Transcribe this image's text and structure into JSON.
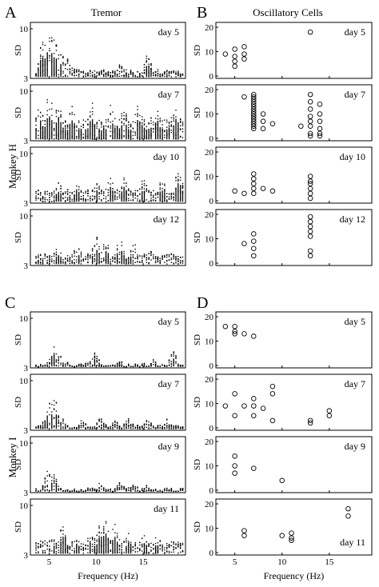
{
  "panel_letters": {
    "A": "A",
    "B": "B",
    "C": "C",
    "D": "D"
  },
  "column_titles": {
    "left": "Tremor",
    "right": "Oscillatory Cells"
  },
  "monkey_labels": {
    "h": "Monkey H",
    "i": "Monkey I"
  },
  "x_axis": {
    "label": "Frequency (Hz)",
    "ticks": [
      5,
      10,
      15
    ],
    "range": [
      3,
      19.5
    ]
  },
  "tremor_y": {
    "label": "SD",
    "ticks": [
      3,
      10
    ],
    "range": [
      3,
      10
    ]
  },
  "cells_y": {
    "label": "SD",
    "ticks": [
      0,
      10,
      20
    ],
    "range": [
      0,
      21
    ]
  },
  "chart_data": [
    {
      "id": "A-day5",
      "type": "scatter",
      "series_kind": "tremor",
      "panel_label": "day 5",
      "peaks": [
        {
          "f": 4.3,
          "h": 8.5
        },
        {
          "f": 4.8,
          "h": 9.5
        },
        {
          "f": 5.2,
          "h": 9.5
        },
        {
          "f": 5.6,
          "h": 8.8
        },
        {
          "f": 6.0,
          "h": 7.5
        },
        {
          "f": 6.5,
          "h": 6.2
        },
        {
          "f": 7.0,
          "h": 5.5
        },
        {
          "f": 8.0,
          "h": 4.8
        },
        {
          "f": 9.5,
          "h": 4.5
        },
        {
          "f": 12.5,
          "h": 5.0
        },
        {
          "f": 15.5,
          "h": 6.2
        },
        {
          "f": 16.5,
          "h": 4.5
        }
      ],
      "base": 4.3
    },
    {
      "id": "A-day7",
      "type": "scatter",
      "series_kind": "tremor",
      "panel_label": "day 7",
      "peaks": [
        {
          "f": 4.0,
          "h": 8.5
        },
        {
          "f": 5.0,
          "h": 9.5
        },
        {
          "f": 6.0,
          "h": 9.0
        },
        {
          "f": 7.5,
          "h": 8.2
        },
        {
          "f": 9.5,
          "h": 8.5
        },
        {
          "f": 11.5,
          "h": 8.5
        },
        {
          "f": 13.0,
          "h": 8.0
        },
        {
          "f": 14.5,
          "h": 8.3
        },
        {
          "f": 16.5,
          "h": 8.0
        },
        {
          "f": 18.5,
          "h": 8.2
        }
      ],
      "base": 7.0
    },
    {
      "id": "A-day10",
      "type": "scatter",
      "series_kind": "tremor",
      "panel_label": "day 10",
      "peaks": [
        {
          "f": 4.0,
          "h": 4.5
        },
        {
          "f": 6.0,
          "h": 6.0
        },
        {
          "f": 8.0,
          "h": 6.5
        },
        {
          "f": 10.0,
          "h": 6.5
        },
        {
          "f": 11.5,
          "h": 7.0
        },
        {
          "f": 13.0,
          "h": 6.8
        },
        {
          "f": 15.0,
          "h": 6.5
        },
        {
          "f": 17.0,
          "h": 6.5
        },
        {
          "f": 18.8,
          "h": 8.0
        }
      ],
      "base": 5.3
    },
    {
      "id": "A-day12",
      "type": "scatter",
      "series_kind": "tremor",
      "panel_label": "day 12",
      "peaks": [
        {
          "f": 4.5,
          "h": 4.0
        },
        {
          "f": 6.0,
          "h": 5.5
        },
        {
          "f": 8.0,
          "h": 6.0
        },
        {
          "f": 10.0,
          "h": 7.3
        },
        {
          "f": 11.0,
          "h": 7.0
        },
        {
          "f": 12.5,
          "h": 7.0
        },
        {
          "f": 14.0,
          "h": 6.0
        },
        {
          "f": 16.0,
          "h": 5.0
        },
        {
          "f": 18.0,
          "h": 4.0
        }
      ],
      "base": 5.0
    },
    {
      "id": "B-day5",
      "type": "scatter",
      "series_kind": "cells",
      "panel_label": "day 5",
      "points": [
        [
          4,
          9
        ],
        [
          5,
          8
        ],
        [
          5,
          11
        ],
        [
          5,
          6
        ],
        [
          5,
          4
        ],
        [
          6,
          7
        ],
        [
          6,
          9
        ],
        [
          6,
          12
        ],
        [
          13,
          18
        ]
      ]
    },
    {
      "id": "B-day7",
      "type": "scatter",
      "series_kind": "cells",
      "panel_label": "day 7",
      "points": [
        [
          6,
          17
        ],
        [
          7,
          18
        ],
        [
          7,
          17
        ],
        [
          7,
          16
        ],
        [
          7,
          15
        ],
        [
          7,
          14
        ],
        [
          7,
          13
        ],
        [
          7,
          12
        ],
        [
          7,
          11
        ],
        [
          7,
          10
        ],
        [
          7,
          9
        ],
        [
          7,
          8
        ],
        [
          7,
          7
        ],
        [
          7,
          6
        ],
        [
          7,
          5
        ],
        [
          7,
          4
        ],
        [
          8,
          10
        ],
        [
          8,
          7
        ],
        [
          8,
          4
        ],
        [
          9,
          6
        ],
        [
          12,
          5
        ],
        [
          13,
          18
        ],
        [
          13,
          15
        ],
        [
          13,
          12
        ],
        [
          13,
          9
        ],
        [
          13,
          7
        ],
        [
          13,
          5
        ],
        [
          13,
          2
        ],
        [
          13,
          1
        ],
        [
          14,
          14
        ],
        [
          14,
          10
        ],
        [
          14,
          7
        ],
        [
          14,
          4
        ],
        [
          14,
          2
        ],
        [
          14,
          1
        ]
      ]
    },
    {
      "id": "B-day10",
      "type": "scatter",
      "series_kind": "cells",
      "panel_label": "day 10",
      "points": [
        [
          5,
          4
        ],
        [
          6,
          3
        ],
        [
          7,
          11
        ],
        [
          7,
          9
        ],
        [
          7,
          7
        ],
        [
          7,
          5
        ],
        [
          7,
          3
        ],
        [
          8,
          5
        ],
        [
          9,
          4
        ],
        [
          13,
          10
        ],
        [
          13,
          8
        ],
        [
          13,
          7
        ],
        [
          13,
          5
        ],
        [
          13,
          3
        ],
        [
          13,
          1
        ]
      ]
    },
    {
      "id": "B-day12",
      "type": "scatter",
      "series_kind": "cells",
      "panel_label": "day 12",
      "points": [
        [
          6,
          8
        ],
        [
          7,
          12
        ],
        [
          7,
          9
        ],
        [
          7,
          6
        ],
        [
          7,
          3
        ],
        [
          13,
          19
        ],
        [
          13,
          17
        ],
        [
          13,
          15
        ],
        [
          13,
          13
        ],
        [
          13,
          11
        ],
        [
          13,
          5
        ],
        [
          13,
          3
        ]
      ]
    },
    {
      "id": "C-day5",
      "type": "scatter",
      "series_kind": "tremor",
      "panel_label": "day 5",
      "peaks": [
        {
          "f": 5.5,
          "h": 6.3
        },
        {
          "f": 6.0,
          "h": 5.0
        },
        {
          "f": 7.0,
          "h": 3.8
        },
        {
          "f": 9.8,
          "h": 5.3
        },
        {
          "f": 12.5,
          "h": 3.8
        },
        {
          "f": 16.0,
          "h": 4.0
        },
        {
          "f": 18.2,
          "h": 5.5
        }
      ],
      "base": 3.5
    },
    {
      "id": "C-day7",
      "type": "scatter",
      "series_kind": "tremor",
      "panel_label": "day 7",
      "peaks": [
        {
          "f": 5.0,
          "h": 7.5
        },
        {
          "f": 5.5,
          "h": 7.8
        },
        {
          "f": 6.5,
          "h": 4.5
        },
        {
          "f": 8.5,
          "h": 4.3
        },
        {
          "f": 10.5,
          "h": 4.5
        },
        {
          "f": 12.0,
          "h": 4.5
        },
        {
          "f": 13.5,
          "h": 4.8
        },
        {
          "f": 15.5,
          "h": 4.3
        },
        {
          "f": 17.5,
          "h": 4.3
        }
      ],
      "base": 3.8
    },
    {
      "id": "C-day9",
      "type": "scatter",
      "series_kind": "tremor",
      "panel_label": "day 9",
      "peaks": [
        {
          "f": 5.0,
          "h": 6.5
        },
        {
          "f": 5.5,
          "h": 6.0
        },
        {
          "f": 6.0,
          "h": 4.0
        },
        {
          "f": 10.5,
          "h": 4.5
        },
        {
          "f": 12.5,
          "h": 4.5
        },
        {
          "f": 14.0,
          "h": 4.3
        },
        {
          "f": 15.5,
          "h": 4.0
        },
        {
          "f": 17.5,
          "h": 3.8
        }
      ],
      "base": 3.5
    },
    {
      "id": "C-day11",
      "type": "scatter",
      "series_kind": "tremor",
      "panel_label": "day 11",
      "peaks": [
        {
          "f": 4.0,
          "h": 4.0
        },
        {
          "f": 5.5,
          "h": 5.5
        },
        {
          "f": 6.5,
          "h": 7.5
        },
        {
          "f": 8.0,
          "h": 5.5
        },
        {
          "f": 9.5,
          "h": 6.5
        },
        {
          "f": 10.5,
          "h": 8.0
        },
        {
          "f": 11.0,
          "h": 8.5
        },
        {
          "f": 12.0,
          "h": 7.5
        },
        {
          "f": 13.5,
          "h": 6.0
        },
        {
          "f": 15.0,
          "h": 6.0
        },
        {
          "f": 16.5,
          "h": 5.5
        },
        {
          "f": 18.5,
          "h": 5.0
        }
      ],
      "base": 5.5
    },
    {
      "id": "D-day5",
      "type": "scatter",
      "series_kind": "cells",
      "panel_label": "day 5",
      "points": [
        [
          4,
          16
        ],
        [
          5,
          16
        ],
        [
          5,
          14
        ],
        [
          5,
          13
        ],
        [
          6,
          13
        ],
        [
          7,
          12
        ]
      ]
    },
    {
      "id": "D-day7",
      "type": "scatter",
      "series_kind": "cells",
      "panel_label": "day 7",
      "points": [
        [
          4,
          9
        ],
        [
          5,
          14
        ],
        [
          5,
          5
        ],
        [
          6,
          9
        ],
        [
          7,
          12
        ],
        [
          7,
          9
        ],
        [
          7,
          5
        ],
        [
          8,
          8
        ],
        [
          9,
          17
        ],
        [
          9,
          14
        ],
        [
          9,
          3
        ],
        [
          13,
          3
        ],
        [
          13,
          2
        ],
        [
          15,
          7
        ],
        [
          15,
          5
        ]
      ]
    },
    {
      "id": "D-day9",
      "type": "scatter",
      "series_kind": "cells",
      "panel_label": "day 9",
      "points": [
        [
          5,
          14
        ],
        [
          5,
          10
        ],
        [
          5,
          7
        ],
        [
          7,
          9
        ],
        [
          10,
          4
        ]
      ]
    },
    {
      "id": "D-day11",
      "type": "scatter",
      "series_kind": "cells",
      "panel_label": "day 11",
      "points": [
        [
          6,
          9
        ],
        [
          6,
          7
        ],
        [
          10,
          7
        ],
        [
          11,
          8
        ],
        [
          11,
          6
        ],
        [
          11,
          5
        ],
        [
          17,
          18
        ],
        [
          17,
          15
        ]
      ]
    }
  ]
}
